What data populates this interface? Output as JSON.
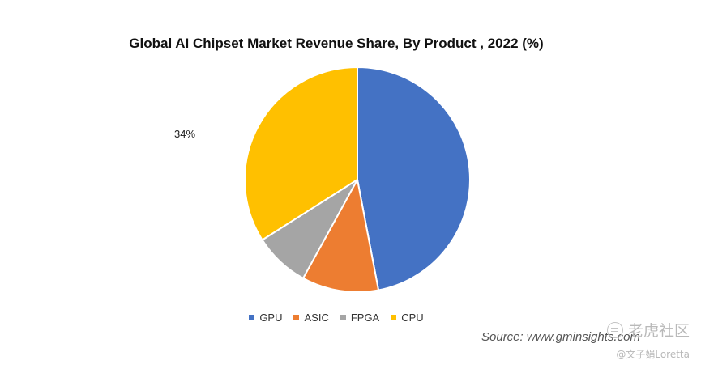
{
  "chart_data": {
    "type": "pie",
    "title": "Global AI Chipset Market  Revenue Share, By Product , 2022 (%)",
    "categories": [
      "GPU",
      "ASIC",
      "FPGA",
      "CPU"
    ],
    "values": [
      47,
      11,
      8,
      34
    ],
    "colors": [
      "#4472C4",
      "#ED7D31",
      "#A5A5A5",
      "#FFC000"
    ],
    "data_labels": [
      null,
      null,
      null,
      "34%"
    ],
    "legend_position": "bottom"
  },
  "source": "Source: www.gminsights.com",
  "watermark": {
    "line1": "老虎社区",
    "line2": "@文子娟Loretta"
  }
}
